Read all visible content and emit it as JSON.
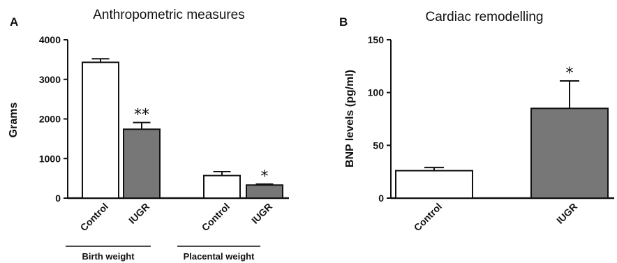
{
  "chart_data": [
    {
      "type": "bar",
      "panel": "A",
      "title": "Anthropometric measures",
      "ylabel": "Grams",
      "ylim": [
        0,
        4000
      ],
      "yticks": [
        0,
        1000,
        2000,
        3000,
        4000
      ],
      "categories": [
        "Control",
        "IUGR",
        "Control",
        "IUGR"
      ],
      "values": [
        3430,
        1740,
        570,
        330
      ],
      "errors": [
        90,
        170,
        100,
        25
      ],
      "significance": [
        "",
        "**",
        "",
        "*"
      ],
      "fills": [
        "#ffffff",
        "#777777",
        "#ffffff",
        "#777777"
      ],
      "groups": [
        {
          "label": "Birth weight",
          "categories": [
            0,
            1
          ]
        },
        {
          "label": "Placental weight",
          "categories": [
            2,
            3
          ]
        }
      ]
    },
    {
      "type": "bar",
      "panel": "B",
      "title": "Cardiac remodelling",
      "ylabel": "BNP levels (pg/ml)",
      "ylim": [
        0,
        150
      ],
      "yticks": [
        0,
        50,
        100,
        150
      ],
      "categories": [
        "Control",
        "IUGR"
      ],
      "values": [
        26,
        85
      ],
      "errors": [
        3,
        26
      ],
      "significance": [
        "",
        "*"
      ],
      "fills": [
        "#ffffff",
        "#777777"
      ],
      "groups": []
    }
  ]
}
